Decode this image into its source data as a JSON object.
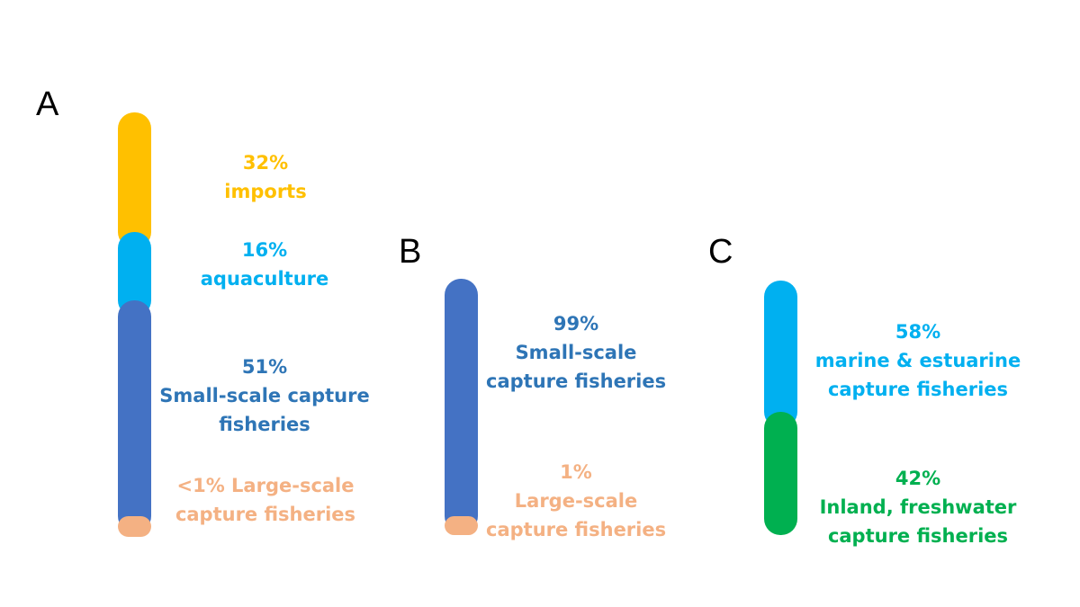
{
  "chart_data": [
    {
      "type": "bar",
      "panel": "A",
      "stacked": true,
      "segments": [
        {
          "pct_text": "32%",
          "name_lines": [
            "imports"
          ],
          "value": 32,
          "color": "#FFC000"
        },
        {
          "pct_text": "16%",
          "name_lines": [
            "aquaculture"
          ],
          "value": 16,
          "color": "#00B0F0"
        },
        {
          "pct_text": "51%",
          "name_lines": [
            "Small-scale capture",
            "fisheries"
          ],
          "value": 51,
          "color": "#4472C4"
        },
        {
          "pct_text": "<1% Large-scale",
          "name_lines": [
            "capture fisheries"
          ],
          "value": 1,
          "color": "#F4B183"
        }
      ]
    },
    {
      "type": "bar",
      "panel": "B",
      "stacked": true,
      "segments": [
        {
          "pct_text": "99%",
          "name_lines": [
            "Small-scale",
            "capture fisheries"
          ],
          "value": 99,
          "color": "#4472C4"
        },
        {
          "pct_text": "1%",
          "name_lines": [
            "Large-scale",
            "capture fisheries"
          ],
          "value": 1,
          "color": "#F4B183"
        }
      ]
    },
    {
      "type": "bar",
      "panel": "C",
      "stacked": true,
      "segments": [
        {
          "pct_text": "58%",
          "name_lines": [
            "marine & estuarine",
            "capture fisheries"
          ],
          "value": 58,
          "color": "#00B0F0"
        },
        {
          "pct_text": "42%",
          "name_lines": [
            "Inland, freshwater",
            "capture fisheries"
          ],
          "value": 42,
          "color": "#00B050"
        }
      ]
    }
  ],
  "text_colors": {
    "imports": "#FFC000",
    "aquaculture": "#00B0F0",
    "small_scale": "#2E75B6",
    "large_scale": "#F4B183",
    "marine": "#00B0F0",
    "inland": "#00B050"
  }
}
